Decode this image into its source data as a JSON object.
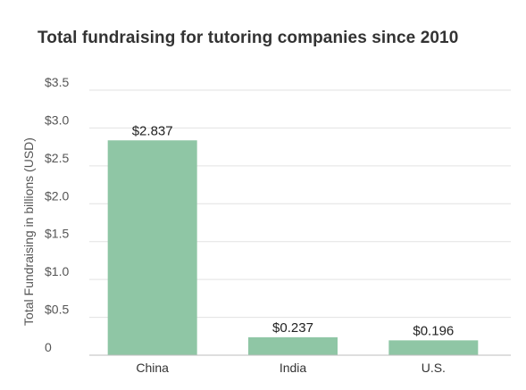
{
  "chart_data": {
    "type": "bar",
    "title": "Total fundraising for tutoring companies since 2010",
    "xlabel": "",
    "ylabel": "Total Fundraising in billions (USD)",
    "categories": [
      "China",
      "India",
      "U.S."
    ],
    "values": [
      2.837,
      0.237,
      0.196
    ],
    "data_labels": [
      "$2.837",
      "$0.237",
      "$0.196"
    ],
    "ylim": [
      0,
      3.5
    ],
    "yticks": [
      0,
      0.5,
      1.0,
      1.5,
      2.0,
      2.5,
      3.0,
      3.5
    ],
    "ytick_labels": [
      "0",
      "$0.5",
      "$1.0",
      "$1.5",
      "$2.0",
      "$2.5",
      "$3.0",
      "$3.5"
    ],
    "grid": true,
    "bar_color": "#8fc6a5"
  }
}
